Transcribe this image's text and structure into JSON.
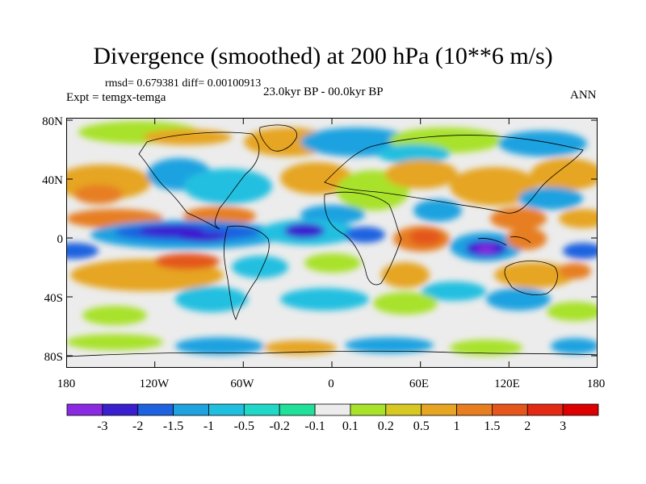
{
  "title": "Divergence (smoothed) at 200 hPa (10**6 m/s)",
  "stats": "rmsd= 0.679381 diff= 0.00100913",
  "experiment": "Expt = temgx-temga",
  "period": "23.0kyr BP - 00.0kyr BP",
  "season": "ANN",
  "lat_labels": [
    "80N",
    "40N",
    "0",
    "40S",
    "80S"
  ],
  "lon_labels": [
    "180",
    "120W",
    "60W",
    "0",
    "60E",
    "120E",
    "180"
  ],
  "colorbar": {
    "labels": [
      "-3",
      "-2",
      "-1.5",
      "-1",
      "-0.5",
      "-0.2",
      "-0.1",
      "0.1",
      "0.2",
      "0.5",
      "1",
      "1.5",
      "2",
      "3"
    ],
    "colors": [
      "#8a2be2",
      "#3a1fcf",
      "#1f62e0",
      "#1fa2e0",
      "#20bfe0",
      "#21d8c8",
      "#20e09a",
      "#ececec",
      "#a8e22a",
      "#d8c824",
      "#e6a522",
      "#e77e20",
      "#e4561c",
      "#e22a14",
      "#dd0000"
    ]
  }
}
